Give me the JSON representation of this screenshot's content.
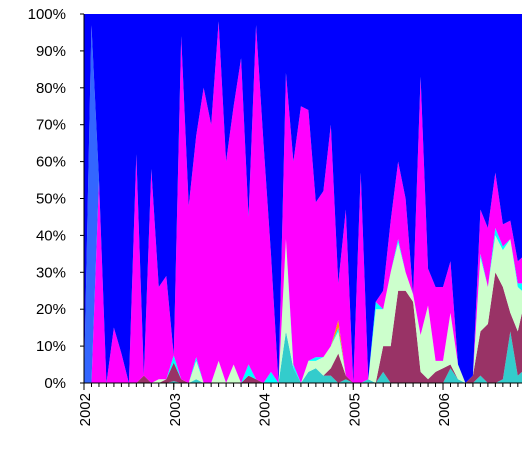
{
  "chart_data": {
    "type": "area",
    "stacking": "percent",
    "title": "",
    "xlabel": "",
    "ylabel": "",
    "x_range": [
      2002.0,
      2006.88
    ],
    "ylim": [
      0,
      100
    ],
    "y_ticks": [
      "0%",
      "10%",
      "20%",
      "30%",
      "40%",
      "50%",
      "60%",
      "70%",
      "80%",
      "90%",
      "100%"
    ],
    "x_ticks": [
      "2002",
      "2003",
      "2004",
      "2005",
      "2006"
    ],
    "x_tick_values": [
      2002,
      2003,
      2004,
      2005,
      2006
    ],
    "minor_ticks_per_year": 12,
    "grid": false,
    "legend": "none",
    "x": [
      2002.0,
      2002.083,
      2002.167,
      2002.25,
      2002.333,
      2002.417,
      2002.5,
      2002.583,
      2002.667,
      2002.75,
      2002.833,
      2002.917,
      2003.0,
      2003.083,
      2003.167,
      2003.25,
      2003.333,
      2003.417,
      2003.5,
      2003.583,
      2003.667,
      2003.75,
      2003.833,
      2003.917,
      2004.0,
      2004.083,
      2004.167,
      2004.25,
      2004.333,
      2004.417,
      2004.5,
      2004.583,
      2004.667,
      2004.75,
      2004.833,
      2004.917,
      2005.0,
      2005.083,
      2005.167,
      2005.25,
      2005.333,
      2005.417,
      2005.5,
      2005.583,
      2005.667,
      2005.75,
      2005.833,
      2005.917,
      2006.0,
      2006.083,
      2006.167,
      2006.25,
      2006.333,
      2006.417,
      2006.5,
      2006.583,
      2006.667,
      2006.75,
      2006.833,
      2006.88
    ],
    "series": [
      {
        "color": "#33cccc",
        "values": [
          0,
          0,
          0,
          0,
          0,
          0,
          0,
          0,
          0,
          0,
          0,
          0,
          0.5,
          0,
          0,
          1,
          0,
          0,
          0,
          0,
          0,
          0,
          0,
          0,
          0,
          0,
          0,
          14,
          4,
          0,
          3,
          4,
          2,
          2,
          0,
          1,
          0,
          0,
          1,
          0,
          3,
          0,
          0,
          0,
          0,
          0,
          0,
          0,
          0,
          4,
          1,
          0,
          0,
          2,
          0,
          0,
          1,
          14,
          2,
          3
        ]
      },
      {
        "color": "#993366",
        "values": [
          0,
          0,
          0,
          0,
          0,
          0,
          0,
          0,
          2,
          0,
          0,
          1,
          5,
          1,
          0,
          0,
          0,
          0,
          0,
          0,
          0,
          0,
          2,
          1,
          0,
          0,
          0,
          0,
          0,
          0,
          0,
          0,
          0,
          2,
          8,
          1,
          0,
          0,
          0,
          0,
          7,
          10,
          25,
          25,
          22,
          3,
          1,
          3,
          4,
          1,
          0,
          0,
          2,
          12,
          16,
          30,
          25,
          5,
          12,
          16
        ]
      },
      {
        "color": "#ccffcc",
        "values": [
          0,
          0,
          0,
          0,
          0,
          0,
          0,
          0,
          0,
          0,
          1,
          0,
          0,
          0,
          0,
          5,
          0,
          0,
          6,
          0,
          5,
          0,
          0,
          0,
          0,
          0,
          0,
          25,
          0,
          0,
          3,
          2,
          5,
          6,
          6,
          0,
          0,
          0,
          0,
          20,
          10,
          20,
          13,
          5,
          2,
          10,
          20,
          3,
          2,
          14,
          4,
          0,
          0,
          20,
          10,
          10,
          10,
          20,
          12,
          6
        ]
      },
      {
        "color": "#00ffff",
        "values": [
          0,
          0,
          0,
          0,
          0,
          0,
          0,
          0,
          0,
          0,
          0,
          0,
          2,
          0,
          0,
          1,
          0,
          0,
          0,
          0,
          0,
          0,
          3,
          0,
          0,
          3,
          0,
          0,
          1,
          0,
          0,
          1,
          0,
          0,
          1,
          0,
          0,
          0,
          0,
          2,
          0,
          0,
          1,
          0,
          0,
          0,
          0,
          0,
          0,
          0,
          0,
          0,
          0,
          1,
          0,
          2,
          1,
          0,
          1,
          2
        ]
      },
      {
        "color": "#ff9900",
        "values": [
          0,
          0,
          0,
          0,
          0,
          0,
          0,
          0,
          0,
          0,
          0,
          0,
          0,
          0,
          0,
          0,
          0,
          0,
          0,
          0,
          0,
          0,
          0,
          0,
          0,
          0,
          0,
          0,
          0,
          0,
          0,
          0,
          0,
          0,
          2,
          0,
          0,
          0,
          0,
          0,
          0,
          0,
          0,
          0,
          0,
          0,
          0,
          0,
          0,
          0,
          0,
          0,
          0,
          0,
          0,
          0,
          0,
          0,
          0,
          0
        ]
      },
      {
        "color": "#ff00ff",
        "values": [
          0,
          0,
          55,
          0,
          15,
          8,
          0,
          62,
          0,
          58,
          25,
          28,
          0,
          93,
          48,
          60,
          80,
          70,
          92,
          60,
          70,
          88,
          40,
          96,
          65,
          32,
          0,
          45,
          55,
          75,
          68,
          42,
          45,
          60,
          10,
          45,
          0,
          57,
          0,
          0,
          5,
          14,
          21,
          20,
          0,
          70,
          10,
          20,
          20,
          14,
          0,
          0,
          0,
          12,
          16,
          15,
          6,
          5,
          6,
          7
        ]
      },
      {
        "color": "#3366ff",
        "values": [
          0,
          97,
          0,
          0,
          0,
          0,
          0,
          0,
          0,
          0,
          0,
          0,
          0,
          0,
          0,
          0,
          0,
          0,
          0,
          0,
          0,
          0,
          0,
          0,
          0,
          0,
          0,
          0,
          0,
          0,
          0,
          0,
          0,
          0,
          0,
          0,
          0,
          0,
          0,
          0,
          0,
          0,
          0,
          0,
          0,
          0,
          0,
          0,
          0,
          0,
          0,
          0,
          0,
          0,
          0,
          0,
          0,
          0,
          0,
          0
        ]
      },
      {
        "color": "#0000ff",
        "values": [
          100,
          3,
          45,
          100,
          85,
          92,
          100,
          38,
          98,
          42,
          74,
          71,
          92.5,
          6,
          52,
          33,
          20,
          30,
          2,
          40,
          25,
          12,
          55,
          3,
          35,
          65,
          100,
          16,
          40,
          25,
          26,
          51,
          48,
          30,
          73,
          53,
          100,
          43,
          99,
          78,
          75,
          56,
          40,
          50,
          76,
          17,
          69,
          74,
          74,
          67,
          95,
          100,
          98,
          53,
          58,
          43,
          57,
          56,
          67,
          66
        ]
      }
    ]
  }
}
